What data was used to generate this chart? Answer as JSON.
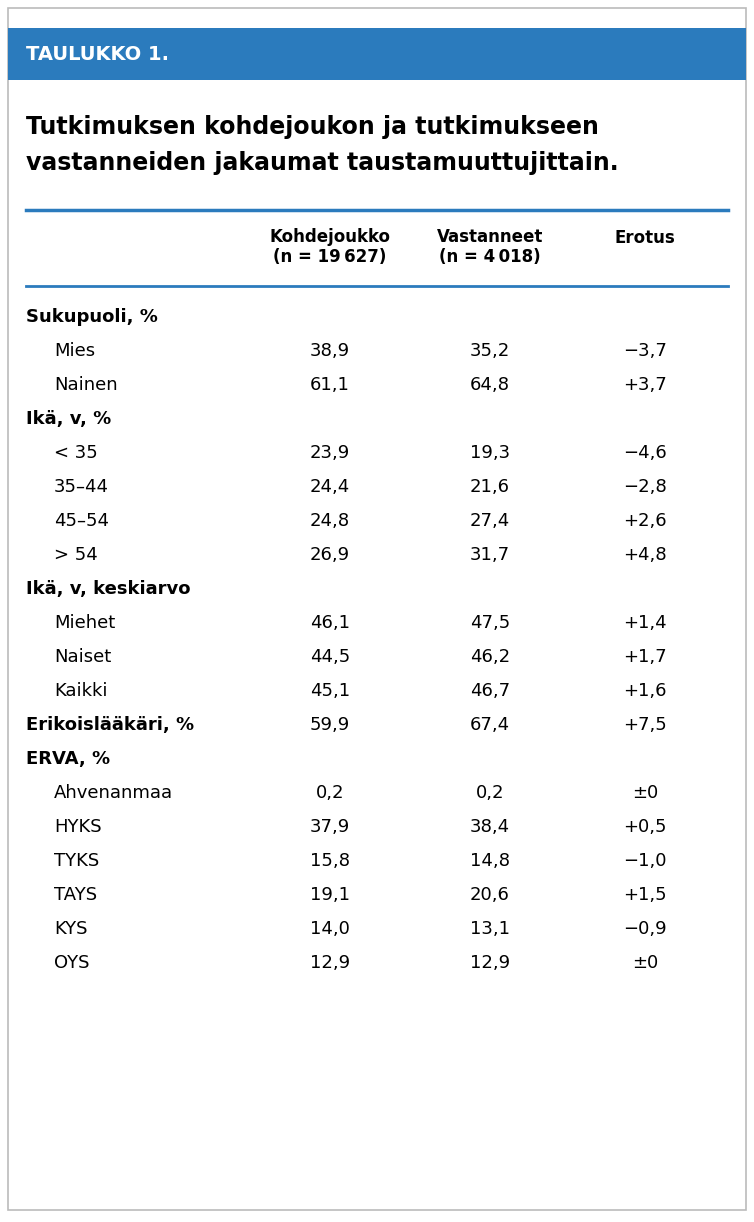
{
  "title_box_text": "TAULUKKO 1.",
  "title_box_color": "#2B7BBD",
  "title_text_line1": "Tutkimuksen kohdejoukon ja tutkimukseen",
  "title_text_line2": "vastanneiden jakaumat taustamuuttujittain.",
  "col_headers": [
    [
      "Kohdejoukko",
      "(n = 19 627)"
    ],
    [
      "Vastanneet",
      "(n = 4 018)"
    ],
    [
      "Erotus"
    ]
  ],
  "rows": [
    {
      "label": "Sukupuoli, %",
      "indent": 0,
      "col1": "",
      "col2": "",
      "col3": "",
      "bold_label": true
    },
    {
      "label": "Mies",
      "indent": 1,
      "col1": "38,9",
      "col2": "35,2",
      "col3": "−3,7",
      "bold_label": false
    },
    {
      "label": "Nainen",
      "indent": 1,
      "col1": "61,1",
      "col2": "64,8",
      "col3": "+3,7",
      "bold_label": false
    },
    {
      "label": "Ikä, v, %",
      "indent": 0,
      "col1": "",
      "col2": "",
      "col3": "",
      "bold_label": true
    },
    {
      "label": "< 35",
      "indent": 1,
      "col1": "23,9",
      "col2": "19,3",
      "col3": "−4,6",
      "bold_label": false
    },
    {
      "label": "35–44",
      "indent": 1,
      "col1": "24,4",
      "col2": "21,6",
      "col3": "−2,8",
      "bold_label": false
    },
    {
      "label": "45–54",
      "indent": 1,
      "col1": "24,8",
      "col2": "27,4",
      "col3": "+2,6",
      "bold_label": false
    },
    {
      "label": "> 54",
      "indent": 1,
      "col1": "26,9",
      "col2": "31,7",
      "col3": "+4,8",
      "bold_label": false
    },
    {
      "label": "Ikä, v, keskiarvo",
      "indent": 0,
      "col1": "",
      "col2": "",
      "col3": "",
      "bold_label": true
    },
    {
      "label": "Miehet",
      "indent": 1,
      "col1": "46,1",
      "col2": "47,5",
      "col3": "+1,4",
      "bold_label": false
    },
    {
      "label": "Naiset",
      "indent": 1,
      "col1": "44,5",
      "col2": "46,2",
      "col3": "+1,7",
      "bold_label": false
    },
    {
      "label": "Kaikki",
      "indent": 1,
      "col1": "45,1",
      "col2": "46,7",
      "col3": "+1,6",
      "bold_label": false
    },
    {
      "label": "Erikoislääkäri, %",
      "indent": 0,
      "col1": "59,9",
      "col2": "67,4",
      "col3": "+7,5",
      "bold_label": true
    },
    {
      "label": "ERVA, %",
      "indent": 0,
      "col1": "",
      "col2": "",
      "col3": "",
      "bold_label": true
    },
    {
      "label": "Ahvenanmaa",
      "indent": 1,
      "col1": "0,2",
      "col2": "0,2",
      "col3": "±0",
      "bold_label": false
    },
    {
      "label": "HYKS",
      "indent": 1,
      "col1": "37,9",
      "col2": "38,4",
      "col3": "+0,5",
      "bold_label": false
    },
    {
      "label": "TYKS",
      "indent": 1,
      "col1": "15,8",
      "col2": "14,8",
      "col3": "−1,0",
      "bold_label": false
    },
    {
      "label": "TAYS",
      "indent": 1,
      "col1": "19,1",
      "col2": "20,6",
      "col3": "+1,5",
      "bold_label": false
    },
    {
      "label": "KYS",
      "indent": 1,
      "col1": "14,0",
      "col2": "13,1",
      "col3": "−0,9",
      "bold_label": false
    },
    {
      "label": "OYS",
      "indent": 1,
      "col1": "12,9",
      "col2": "12,9",
      "col3": "±0",
      "bold_label": false
    }
  ],
  "background_color": "#FFFFFF",
  "text_color": "#000000",
  "line_color": "#2B7BBD",
  "font_size_table": 13,
  "font_size_header": 12,
  "font_size_title": 17,
  "font_size_taul": 14,
  "outer_border_color": "#AAAAAA"
}
